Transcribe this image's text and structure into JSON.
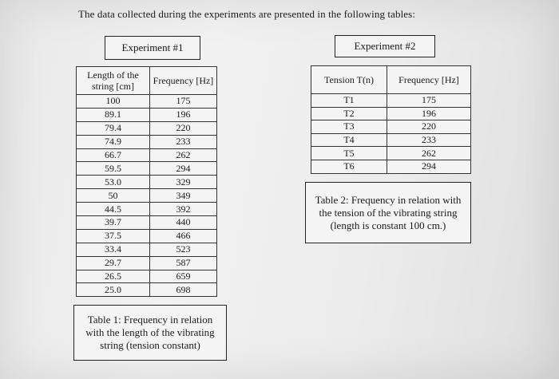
{
  "intro": "The data collected during the experiments are presented in the following tables:",
  "experiment1": {
    "label": "Experiment #1",
    "headers": [
      "Length of the string [cm]",
      "Frequency [Hz]"
    ],
    "rows": [
      [
        "100",
        "175"
      ],
      [
        "89.1",
        "196"
      ],
      [
        "79.4",
        "220"
      ],
      [
        "74.9",
        "233"
      ],
      [
        "66.7",
        "262"
      ],
      [
        "59.5",
        "294"
      ],
      [
        "53.0",
        "329"
      ],
      [
        "50",
        "349"
      ],
      [
        "44.5",
        "392"
      ],
      [
        "39.7",
        "440"
      ],
      [
        "37.5",
        "466"
      ],
      [
        "33.4",
        "523"
      ],
      [
        "29.7",
        "587"
      ],
      [
        "26.5",
        "659"
      ],
      [
        "25.0",
        "698"
      ]
    ],
    "caption": "Table 1: Frequency in relation with the length of the vibrating string (tension constant)"
  },
  "experiment2": {
    "label": "Experiment #2",
    "headers": [
      "Tension T(n)",
      "Frequency [Hz]"
    ],
    "rows": [
      [
        "T1",
        "175"
      ],
      [
        "T2",
        "196"
      ],
      [
        "T3",
        "220"
      ],
      [
        "T4",
        "233"
      ],
      [
        "T5",
        "262"
      ],
      [
        "T6",
        "294"
      ]
    ],
    "caption": "Table 2: Frequency in relation with the tension of the vibrating string (length is constant 100 cm.)"
  }
}
